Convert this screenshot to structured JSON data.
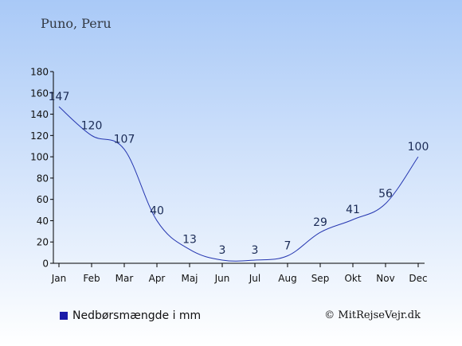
{
  "location": "Puno, Peru",
  "legend_label": "Nedbørsmængde i mm",
  "credit": "© MitRejseVejr.dk",
  "colors": {
    "line": "#2536b0",
    "legend_swatch": "#1a1aa8",
    "bg_top": "#a9c9f7",
    "bg_bottom": "#ffffff",
    "text": "#1a2a55"
  },
  "chart_data": {
    "type": "line",
    "categories": [
      "Jan",
      "Feb",
      "Mar",
      "Apr",
      "Maj",
      "Jun",
      "Jul",
      "Aug",
      "Sep",
      "Okt",
      "Nov",
      "Dec"
    ],
    "series": [
      {
        "name": "Nedbørsmængde i mm",
        "values": [
          147,
          120,
          107,
          40,
          13,
          3,
          3,
          7,
          29,
          41,
          56,
          100
        ]
      }
    ],
    "data_labels": [
      "147",
      "120",
      "107",
      "40",
      "13",
      "3",
      "3",
      "7",
      "29",
      "41",
      "56",
      "100"
    ],
    "y_ticks": [
      "0",
      "20",
      "40",
      "60",
      "80",
      "100",
      "120",
      "140",
      "160",
      "180"
    ],
    "ylim": [
      0,
      180
    ],
    "grid": false
  }
}
